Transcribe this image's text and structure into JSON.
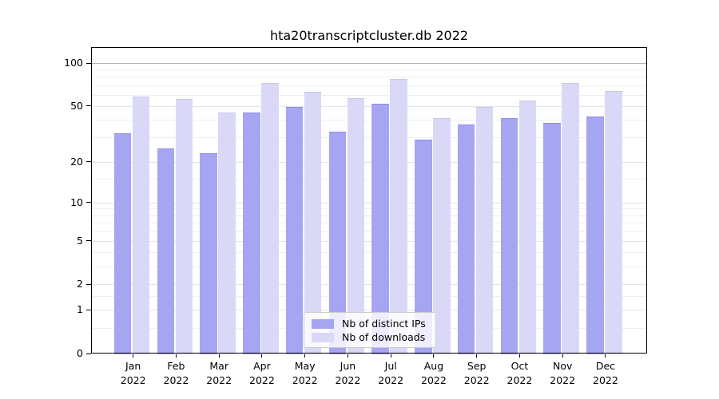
{
  "title": "hta20transcriptcluster.db 2022",
  "chart_data": {
    "type": "bar",
    "title": "hta20transcriptcluster.db 2022",
    "year": "2022",
    "months": [
      "Jan",
      "Feb",
      "Mar",
      "Apr",
      "May",
      "Jun",
      "Jul",
      "Aug",
      "Sep",
      "Oct",
      "Nov",
      "Dec"
    ],
    "series": [
      {
        "name": "Nb of distinct IPs",
        "color": "#a5a5f2",
        "edge_color": "#8f8fe6",
        "values": [
          32,
          25,
          23,
          45,
          49,
          33,
          52,
          29,
          37,
          41,
          38,
          42
        ]
      },
      {
        "name": "Nb of downloads",
        "color": "#d9d9f7",
        "edge_color": "#c6c6ee",
        "values": [
          58,
          56,
          45,
          73,
          63,
          57,
          77,
          41,
          49,
          55,
          73,
          64
        ]
      }
    ],
    "y_axis": {
      "scale": "log1p",
      "ticks": [
        0,
        1,
        2,
        5,
        10,
        20,
        50,
        100
      ],
      "minor_gridlines": [
        0.5,
        1.5,
        3,
        4,
        6,
        7,
        8,
        9,
        15,
        30,
        40,
        60,
        70,
        80,
        90
      ],
      "top_value": 129.2
    },
    "legend_position": "lower center",
    "colors": {
      "grid_minor": "#efefef",
      "grid_major": "#e4e4e4",
      "grid_top_line": "#b4b4b4",
      "spine": "#000000",
      "text": "#000000",
      "background": "#ffffff"
    }
  }
}
